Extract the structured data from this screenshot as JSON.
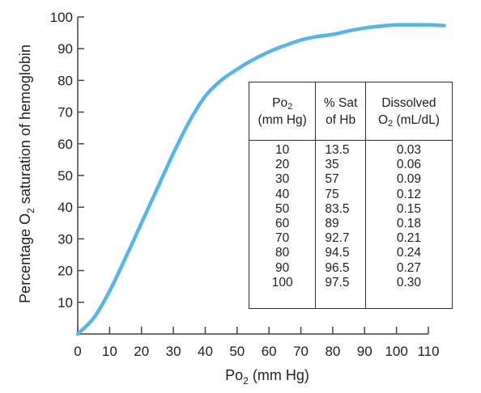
{
  "chart_data": {
    "type": "line",
    "xlabel": {
      "main": "Po",
      "sub": "2",
      "rest": " (mm Hg)"
    },
    "ylabel": {
      "pre": "Percentage O",
      "sub": "2",
      "post": " saturation of hemoglobin"
    },
    "xlim": [
      0,
      110
    ],
    "ylim": [
      0,
      100
    ],
    "x_ticks": [
      0,
      10,
      20,
      30,
      40,
      50,
      60,
      70,
      80,
      90,
      100,
      110
    ],
    "y_ticks": [
      10,
      20,
      30,
      40,
      50,
      60,
      70,
      80,
      90,
      100
    ],
    "grid": false,
    "series": [
      {
        "color": "#5ab4e8",
        "x": [
          0,
          5,
          10,
          15,
          20,
          25,
          30,
          35,
          40,
          45,
          50,
          55,
          60,
          65,
          70,
          75,
          80,
          85,
          90,
          95,
          100,
          105,
          110,
          115
        ],
        "y": [
          0,
          5,
          13.5,
          24,
          35,
          46,
          57,
          67,
          75,
          80,
          83.5,
          86.5,
          89,
          91,
          92.7,
          93.8,
          94.5,
          95.6,
          96.5,
          97.1,
          97.5,
          97.5,
          97.5,
          97.3
        ]
      }
    ],
    "table": {
      "headers": [
        {
          "line1_main": "Po",
          "line1_sub": "2",
          "line1_rest": "",
          "line2_main": "(mm Hg)",
          "line2_sub": "",
          "line2_rest": ""
        },
        {
          "line1_main": "% Sat",
          "line1_sub": "",
          "line1_rest": "",
          "line2_main": "of Hb",
          "line2_sub": "",
          "line2_rest": ""
        },
        {
          "line1_main": "Dissolved",
          "line1_sub": "",
          "line1_rest": "",
          "line2_main": "O",
          "line2_sub": "2",
          "line2_rest": " (mL/dL)"
        }
      ],
      "columns": [
        [
          "10",
          "20",
          "30",
          "40",
          "50",
          "60",
          "70",
          "80",
          "90",
          "100"
        ],
        [
          "13.5",
          "35",
          "57",
          "75",
          "83.5",
          "89",
          "92.7",
          "94.5",
          "96.5",
          "97.5"
        ],
        [
          "0.03",
          "0.06",
          "0.09",
          "0.12",
          "0.15",
          "0.18",
          "0.21",
          "0.24",
          "0.27",
          "0.30"
        ]
      ]
    }
  }
}
